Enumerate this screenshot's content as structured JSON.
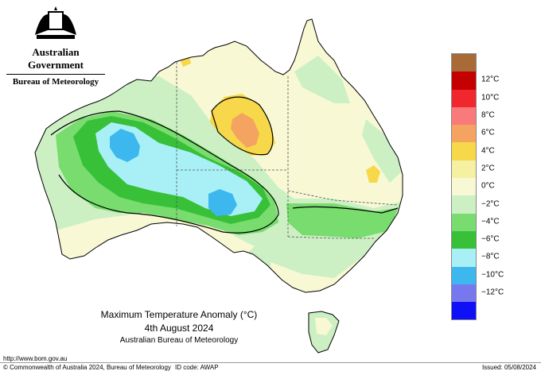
{
  "header": {
    "government": "Australian Government",
    "bureau": "Bureau of Meteorology"
  },
  "map": {
    "title": "Maximum Temperature Anomaly (°C)",
    "date": "4th August 2024",
    "organisation": "Australian Bureau of Meteorology"
  },
  "legend": {
    "items": [
      {
        "label": "",
        "color": "#a86a36"
      },
      {
        "label": "12°C",
        "color": "#c40000"
      },
      {
        "label": "10°C",
        "color": "#f0282d"
      },
      {
        "label": "8°C",
        "color": "#f87a7a"
      },
      {
        "label": "6°C",
        "color": "#f4a460"
      },
      {
        "label": "4°C",
        "color": "#f6d84a"
      },
      {
        "label": "2°C",
        "color": "#f6f0a2"
      },
      {
        "label": "0°C",
        "color": "#f8f8d4"
      },
      {
        "label": "−2°C",
        "color": "#ccf0c4"
      },
      {
        "label": "−4°C",
        "color": "#78dc6e"
      },
      {
        "label": "−6°C",
        "color": "#38c038"
      },
      {
        "label": "−8°C",
        "color": "#a8f0f6"
      },
      {
        "label": "−10°C",
        "color": "#3cb8ee"
      },
      {
        "label": "−12°C",
        "color": "#7878ee"
      },
      {
        "label": "",
        "color": "#1010f6"
      }
    ]
  },
  "footer": {
    "url": "http://www.bom.gov.au",
    "copyright": "© Commonwealth of Australia 2024, Bureau of Meteorology",
    "id_code": "ID code: AWAP",
    "issued": "Issued: 05/08/2024"
  }
}
